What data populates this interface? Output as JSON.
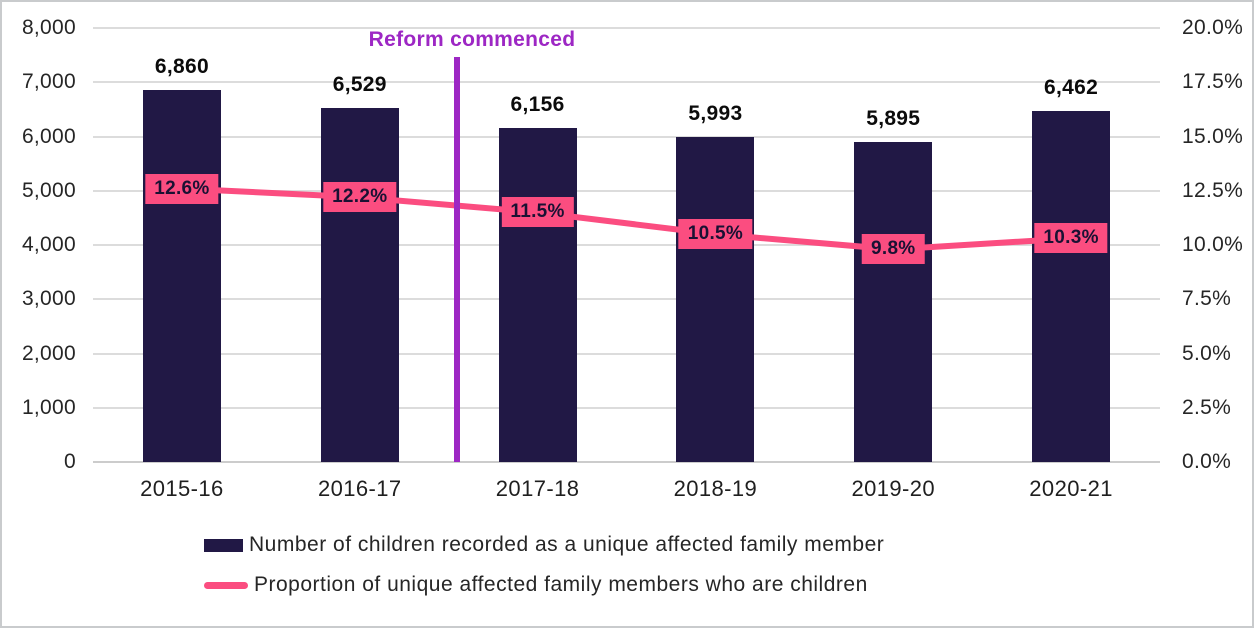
{
  "chart_data": {
    "type": "bar",
    "subtype": "bar-line-combo",
    "title": "",
    "categories": [
      "2015-16",
      "2016-17",
      "2017-18",
      "2018-19",
      "2019-20",
      "2020-21"
    ],
    "series": [
      {
        "name": "Number of children recorded as a unique affected family member",
        "type": "bar",
        "axis": "left",
        "color": "#211845",
        "values": [
          6860,
          6529,
          6156,
          5993,
          5895,
          6462
        ],
        "data_labels": [
          "6,860",
          "6,529",
          "6,156",
          "5,993",
          "5,895",
          "6,462"
        ],
        "label_color": "#0b0b0b"
      },
      {
        "name": "Proportion of unique affected family members who are children",
        "type": "line",
        "axis": "right",
        "color": "#FB4D80",
        "values": [
          12.6,
          12.2,
          11.5,
          10.5,
          9.8,
          10.3
        ],
        "data_labels": [
          "12.6%",
          "12.2%",
          "11.5%",
          "10.5%",
          "9.8%",
          "10.3%"
        ],
        "label_bg": "#FB4D80",
        "label_text_color": "#1A1133"
      }
    ],
    "left_axis": {
      "min": 0,
      "max": 8000,
      "ticks": [
        {
          "value": 0,
          "label": "0"
        },
        {
          "value": 1000,
          "label": "1,000"
        },
        {
          "value": 2000,
          "label": "2,000"
        },
        {
          "value": 3000,
          "label": "3,000"
        },
        {
          "value": 4000,
          "label": "4,000"
        },
        {
          "value": 5000,
          "label": "5,000"
        },
        {
          "value": 6000,
          "label": "6,000"
        },
        {
          "value": 7000,
          "label": "7,000"
        },
        {
          "value": 8000,
          "label": "8,000"
        }
      ]
    },
    "right_axis": {
      "min": 0,
      "max": 20,
      "ticks": [
        {
          "value": 0,
          "label": "0.0%"
        },
        {
          "value": 2.5,
          "label": "2.5%"
        },
        {
          "value": 5,
          "label": "5.0%"
        },
        {
          "value": 7.5,
          "label": "7.5%"
        },
        {
          "value": 10,
          "label": "10.0%"
        },
        {
          "value": 12.5,
          "label": "12.5%"
        },
        {
          "value": 15,
          "label": "15.0%"
        },
        {
          "value": 17.5,
          "label": "17.5%"
        },
        {
          "value": 20,
          "label": "20.0%"
        }
      ]
    },
    "annotation": {
      "label": "Reform commenced",
      "color": "#9D27C4",
      "between_categories": [
        "2016-17",
        "2017-18"
      ]
    },
    "grid": true,
    "legend_position": "bottom-left",
    "colors": {
      "grid": "#DCDCDC",
      "axis_line": "#CCCCCC",
      "tick_text": "#262626"
    }
  }
}
